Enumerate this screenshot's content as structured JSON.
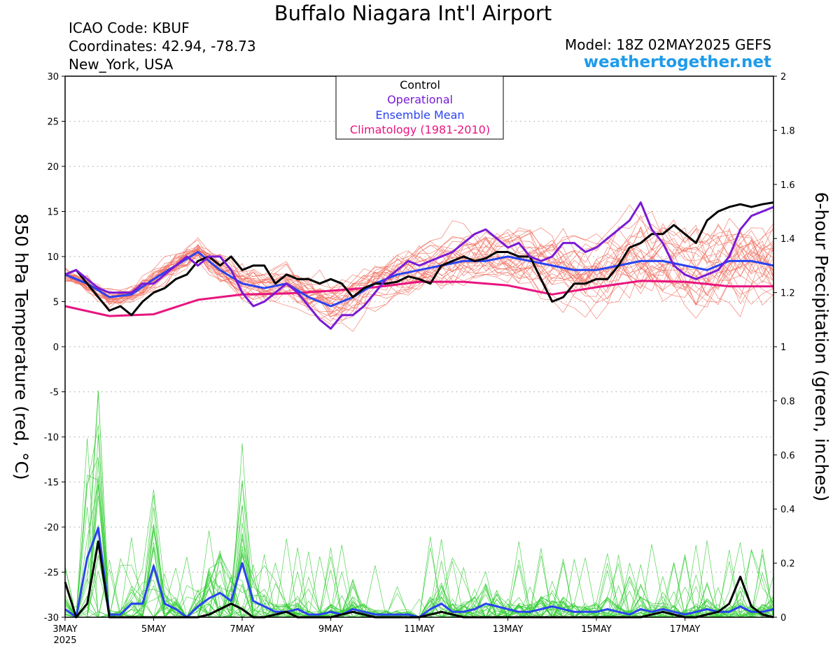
{
  "header": {
    "title": "Buffalo Niagara Int'l Airport",
    "icao": "ICAO Code: KBUF",
    "coords": "Coordinates: 42.94, -78.73",
    "location": "New_York, USA",
    "model": "Model: 18Z 02MAY2025 GEFS",
    "site": "weathertogether.net"
  },
  "colors": {
    "control": "#000000",
    "operational": "#7a1ad6",
    "ensemble_mean": "#2a43f0",
    "climatology": "#e8157f",
    "members_temp": "#f07060",
    "members_precip": "#33cc33",
    "site": "#1e9bea"
  },
  "chart_data": {
    "type": "line",
    "ylabel_left": "850 hPa Temperature (red, °C)",
    "ylabel_right": "6-hour Precipitation (green, inches)",
    "ylim_left": [
      -30,
      30
    ],
    "ylim_right": [
      0,
      2
    ],
    "yticks_left": [
      "30",
      "25",
      "20",
      "15",
      "10",
      "5",
      "0",
      "-5",
      "-10",
      "-15",
      "-20",
      "-25",
      "-30"
    ],
    "yticks_right": [
      "2",
      "1.8",
      "1.6",
      "1.4",
      "1.2",
      "1",
      "0.8",
      "0.6",
      "0.4",
      "0.2",
      "0"
    ],
    "xlim": [
      0,
      16
    ],
    "xticks": [
      {
        "day": 0,
        "label": "3MAY",
        "sub": "2025"
      },
      {
        "day": 2,
        "label": "5MAY",
        "sub": ""
      },
      {
        "day": 4,
        "label": "7MAY",
        "sub": ""
      },
      {
        "day": 6,
        "label": "9MAY",
        "sub": ""
      },
      {
        "day": 8,
        "label": "11MAY",
        "sub": ""
      },
      {
        "day": 10,
        "label": "13MAY",
        "sub": ""
      },
      {
        "day": 12,
        "label": "15MAY",
        "sub": ""
      },
      {
        "day": 14,
        "label": "17MAY",
        "sub": ""
      }
    ],
    "grid": "dotted horizontal",
    "legend": {
      "placement": "top-center",
      "entries": [
        "Control",
        "Operational",
        "Ensemble Mean",
        "Climatology (1981-2010)"
      ]
    },
    "series": [
      {
        "name": "Control",
        "axis": "temperature",
        "x": [
          0,
          0.25,
          0.5,
          0.75,
          1,
          1.25,
          1.5,
          1.75,
          2,
          2.25,
          2.5,
          2.75,
          3,
          3.25,
          3.5,
          3.75,
          4,
          4.25,
          4.5,
          4.75,
          5,
          5.25,
          5.5,
          5.75,
          6,
          6.25,
          6.5,
          6.75,
          7,
          7.25,
          7.5,
          7.75,
          8,
          8.25,
          8.5,
          8.75,
          9,
          9.25,
          9.5,
          9.75,
          10,
          10.25,
          10.5,
          10.75,
          11,
          11.25,
          11.5,
          11.75,
          12,
          12.25,
          12.5,
          12.75,
          13,
          13.25,
          13.5,
          13.75,
          14,
          14.25,
          14.5,
          14.75,
          15,
          15.25,
          15.5,
          15.75,
          16
        ],
        "y": [
          8,
          8.5,
          7,
          5.5,
          4,
          4.5,
          3.5,
          5,
          6,
          6.5,
          7.5,
          8,
          9.5,
          10,
          9,
          10,
          8.5,
          9,
          9,
          7,
          8,
          7.5,
          7.5,
          7,
          7.5,
          7,
          5.5,
          6.5,
          7,
          7,
          7.2,
          7.8,
          7.5,
          7,
          9,
          9.5,
          10,
          9.5,
          9.8,
          10.5,
          10.5,
          10,
          10,
          7.5,
          5,
          5.5,
          7,
          7,
          7.5,
          7.5,
          9,
          11,
          11.5,
          12.5,
          12.5,
          13.5,
          12.5,
          11.5,
          14,
          15,
          15.5,
          15.8,
          15.5,
          15.8,
          16
        ]
      },
      {
        "name": "Operational",
        "axis": "temperature",
        "x": [
          0,
          0.25,
          0.5,
          0.75,
          1,
          1.25,
          1.5,
          1.75,
          2,
          2.25,
          2.5,
          2.75,
          3,
          3.25,
          3.5,
          3.75,
          4,
          4.25,
          4.5,
          4.75,
          5,
          5.25,
          5.5,
          5.75,
          6,
          6.25,
          6.5,
          6.75,
          7,
          7.25,
          7.5,
          7.75,
          8,
          8.25,
          8.5,
          8.75,
          9,
          9.25,
          9.5,
          9.75,
          10,
          10.25,
          10.5,
          10.75,
          11,
          11.25,
          11.5,
          11.75,
          12,
          12.25,
          12.5,
          12.75,
          13,
          13.25,
          13.5,
          13.75,
          14,
          14.25,
          14.5,
          14.75,
          15,
          15.25,
          15.5,
          15.75,
          16
        ],
        "y": [
          8,
          8.5,
          7.5,
          6.5,
          6,
          6,
          6,
          7,
          7,
          8,
          9,
          10,
          9,
          10,
          10,
          8.5,
          6,
          4.5,
          5,
          6,
          7,
          6,
          4.5,
          3,
          2,
          3.5,
          3.5,
          4.5,
          6,
          7.5,
          8.5,
          9.5,
          9,
          9.5,
          10,
          10.5,
          11.5,
          12.5,
          13,
          12,
          11,
          11.5,
          10,
          9.5,
          10,
          11.5,
          11.5,
          10.5,
          11,
          12,
          13,
          14,
          16,
          13,
          11.5,
          9,
          8,
          7.5,
          8,
          8.5,
          10,
          13,
          14.5,
          15,
          15.5
        ]
      },
      {
        "name": "Ensemble Mean",
        "axis": "temperature",
        "x": [
          0,
          0.5,
          1,
          1.5,
          2,
          2.5,
          3,
          3.5,
          4,
          4.5,
          5,
          5.5,
          6,
          6.5,
          7,
          7.5,
          8,
          8.5,
          9,
          9.5,
          10,
          10.5,
          11,
          11.5,
          12,
          12.5,
          13,
          13.5,
          14,
          14.5,
          15,
          15.5,
          16
        ],
        "y": [
          8,
          7,
          5.5,
          5.8,
          7.5,
          9,
          10.5,
          8.5,
          7,
          6.5,
          7,
          5.5,
          4.5,
          5.5,
          7,
          8,
          8.5,
          9,
          9.5,
          9.5,
          10,
          9.5,
          9,
          8.5,
          8.5,
          9,
          9.5,
          9.5,
          9,
          8.5,
          9.5,
          9.5,
          9
        ]
      },
      {
        "name": "Climatology (1981-2010)",
        "axis": "temperature",
        "x": [
          0,
          1,
          2,
          3,
          4,
          5,
          6,
          7,
          8,
          9,
          10,
          11,
          12,
          13,
          14,
          15,
          16
        ],
        "y": [
          4.5,
          3.4,
          3.6,
          5.2,
          5.8,
          5.9,
          6.2,
          6.6,
          7.2,
          7.2,
          6.8,
          5.8,
          6.6,
          7.3,
          7.2,
          6.7,
          6.7
        ]
      },
      {
        "name": "Control",
        "axis": "precipitation",
        "x": [
          0,
          0.25,
          0.5,
          0.75,
          1,
          1.25,
          1.5,
          1.75,
          2,
          2.25,
          2.5,
          2.75,
          3,
          3.25,
          3.5,
          3.75,
          4,
          4.25,
          4.5,
          4.75,
          5,
          5.25,
          5.5,
          5.75,
          6,
          6.25,
          6.5,
          6.75,
          7,
          7.25,
          7.5,
          7.75,
          8,
          8.25,
          8.5,
          8.75,
          9,
          9.25,
          9.5,
          9.75,
          10,
          10.25,
          10.5,
          10.75,
          11,
          11.25,
          11.5,
          11.75,
          12,
          12.25,
          12.5,
          12.75,
          13,
          13.25,
          13.5,
          13.75,
          14,
          14.25,
          14.5,
          14.75,
          15,
          15.25,
          15.5,
          15.75,
          16
        ],
        "y": [
          0.13,
          0,
          0.05,
          0.28,
          0,
          0,
          0,
          0,
          0,
          0,
          0,
          0,
          0,
          0.01,
          0.03,
          0.05,
          0.03,
          0,
          0,
          0.01,
          0.02,
          0,
          0,
          0,
          0,
          0.01,
          0.02,
          0.01,
          0,
          0,
          0,
          0,
          0,
          0.01,
          0.02,
          0.01,
          0,
          0,
          0,
          0,
          0,
          0,
          0,
          0,
          0,
          0,
          0,
          0,
          0,
          0,
          0,
          0,
          0,
          0.01,
          0.02,
          0.01,
          0,
          0,
          0.01,
          0.02,
          0.05,
          0.15,
          0.04,
          0.01,
          0
        ]
      },
      {
        "name": "Ensemble Mean",
        "axis": "precipitation",
        "x": [
          0,
          0.25,
          0.5,
          0.75,
          1,
          1.25,
          1.5,
          1.75,
          2,
          2.25,
          2.5,
          2.75,
          3,
          3.25,
          3.5,
          3.75,
          4,
          4.25,
          4.5,
          4.75,
          5,
          5.25,
          5.5,
          5.75,
          6,
          6.25,
          6.5,
          6.75,
          7,
          7.25,
          7.5,
          7.75,
          8,
          8.25,
          8.5,
          8.75,
          9,
          9.25,
          9.5,
          9.75,
          10,
          10.25,
          10.5,
          10.75,
          11,
          11.25,
          11.5,
          11.75,
          12,
          12.25,
          12.5,
          12.75,
          13,
          13.25,
          13.5,
          13.75,
          14,
          14.25,
          14.5,
          14.75,
          15,
          15.25,
          15.5,
          15.75,
          16
        ],
        "y": [
          0.03,
          0,
          0.22,
          0.33,
          0.01,
          0.01,
          0.05,
          0.05,
          0.19,
          0.05,
          0.03,
          0,
          0.04,
          0.07,
          0.09,
          0.06,
          0.2,
          0.06,
          0.04,
          0.02,
          0.02,
          0.03,
          0.01,
          0.01,
          0.02,
          0.01,
          0.03,
          0.02,
          0.01,
          0.01,
          0.01,
          0.01,
          0,
          0.03,
          0.05,
          0.02,
          0.02,
          0.03,
          0.05,
          0.04,
          0.03,
          0.02,
          0.02,
          0.03,
          0.04,
          0.03,
          0.02,
          0.02,
          0.02,
          0.03,
          0.02,
          0.01,
          0.03,
          0.02,
          0.03,
          0.02,
          0.01,
          0.02,
          0.03,
          0.02,
          0.02,
          0.04,
          0.02,
          0.02,
          0.03
        ]
      }
    ]
  }
}
